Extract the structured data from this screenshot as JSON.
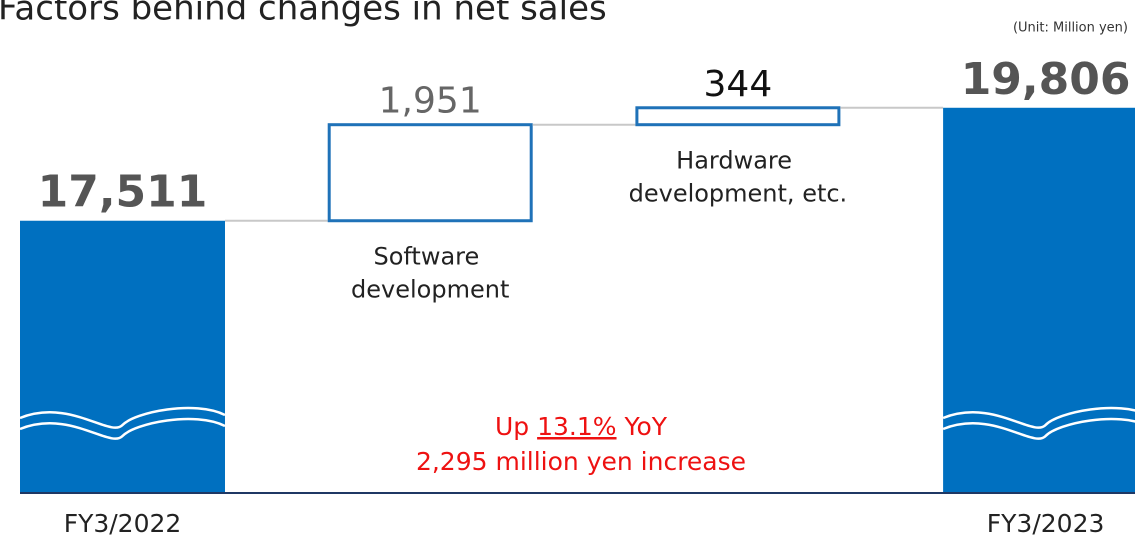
{
  "chart_data": {
    "type": "waterfall",
    "title": "Factors behind changes in net sales",
    "unit": "(Unit: Million yen)",
    "categories": [
      "FY3/2022",
      "Software development",
      "Hardware development, etc.",
      "FY3/2023"
    ],
    "values": [
      17511,
      1951,
      344,
      19806
    ],
    "value_labels": [
      "17,511",
      "1,951",
      "344",
      "19,806"
    ],
    "kinds": [
      "total",
      "increase",
      "increase",
      "total"
    ],
    "color": "#0070c0",
    "increase_color": "#1f72b8",
    "ylim": [
      12000,
      21000
    ],
    "axis_break": true,
    "annotation": {
      "prefix": "Up",
      "highlight": "13.1%",
      "suffix": "YoY",
      "line2": "2,295 million yen increase",
      "color": "#ee1111"
    }
  }
}
